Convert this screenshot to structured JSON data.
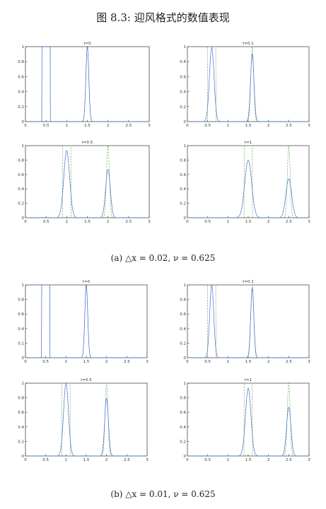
{
  "figure_title": "图 8.3: 迎风格式的数值表现",
  "captions": [
    "(a) △x = 0.02, ν = 0.625",
    "(b) △x = 0.01, ν = 0.625"
  ],
  "colors": {
    "numerical": "#4a6fd1",
    "exact": "#5aa84a",
    "axis": "#333333"
  },
  "chart_data": [
    {
      "type": "line",
      "title": "t=0",
      "xlim": [
        0,
        3
      ],
      "ylim": [
        0,
        1
      ],
      "xticks": [
        "0",
        "0.5",
        "1",
        "1.5",
        "2",
        "2.5",
        "3"
      ],
      "yticks": [
        "0",
        "0.2",
        "0.4",
        "0.6",
        "0.8",
        "1"
      ],
      "series": [
        {
          "style": "dashed",
          "pulse": {
            "start": 0.4,
            "end": 0.6,
            "height": 1
          },
          "gaussian": {
            "center": 1.5,
            "height": 1,
            "width": 0.05
          }
        },
        {
          "style": "solid",
          "pulse": {
            "start": 0.4,
            "end": 0.6,
            "height": 1
          },
          "gaussian": {
            "center": 1.5,
            "height": 1,
            "width": 0.05
          }
        }
      ]
    },
    {
      "type": "line",
      "title": "t=0.1",
      "xlim": [
        0,
        3
      ],
      "ylim": [
        0,
        1
      ],
      "xticks": [
        "0",
        "0.5",
        "1",
        "1.5",
        "2",
        "2.5",
        "3"
      ],
      "yticks": [
        "0",
        "0.2",
        "0.4",
        "0.6",
        "0.8",
        "1"
      ],
      "series": [
        {
          "style": "dashed",
          "pulse": {
            "start": 0.5,
            "end": 0.7,
            "height": 1
          },
          "gaussian": {
            "center": 1.6,
            "height": 1,
            "width": 0.05
          }
        },
        {
          "style": "solid",
          "bump": {
            "center": 0.6,
            "height": 0.99,
            "width": 0.08
          },
          "gaussian": {
            "center": 1.6,
            "height": 0.9,
            "width": 0.06
          }
        }
      ]
    },
    {
      "type": "line",
      "title": "t=0.5",
      "xlim": [
        0,
        3
      ],
      "ylim": [
        0,
        1
      ],
      "xticks": [
        "0",
        "0.5",
        "1",
        "1.5",
        "2",
        "2.5",
        "3"
      ],
      "yticks": [
        "0",
        "0.2",
        "0.4",
        "0.6",
        "0.8",
        "1"
      ],
      "series": [
        {
          "style": "dashed",
          "pulse": {
            "start": 0.9,
            "end": 1.1,
            "height": 1
          },
          "gaussian": {
            "center": 2.0,
            "height": 1,
            "width": 0.05
          }
        },
        {
          "style": "solid",
          "bump": {
            "center": 1.0,
            "height": 0.93,
            "width": 0.1
          },
          "gaussian": {
            "center": 2.0,
            "height": 0.67,
            "width": 0.08
          }
        }
      ]
    },
    {
      "type": "line",
      "title": "t=1",
      "xlim": [
        0,
        3
      ],
      "ylim": [
        0,
        1
      ],
      "xticks": [
        "0",
        "0.5",
        "1",
        "1.5",
        "2",
        "2.5",
        "3"
      ],
      "yticks": [
        "0",
        "0.2",
        "0.4",
        "0.6",
        "0.8",
        "1"
      ],
      "series": [
        {
          "style": "dashed",
          "pulse": {
            "start": 1.4,
            "end": 1.6,
            "height": 1
          },
          "gaussian": {
            "center": 2.5,
            "height": 1,
            "width": 0.05
          }
        },
        {
          "style": "solid",
          "bump": {
            "center": 1.5,
            "height": 0.8,
            "width": 0.12
          },
          "gaussian": {
            "center": 2.5,
            "height": 0.54,
            "width": 0.1
          }
        }
      ]
    },
    {
      "type": "line",
      "title": "t=0",
      "xlim": [
        0,
        3
      ],
      "ylim": [
        0,
        1
      ],
      "xticks": [
        "0",
        "0.5",
        "1",
        "1.5",
        "2",
        "2.5",
        "3"
      ],
      "yticks": [
        "0",
        "0.2",
        "0.4",
        "0.6",
        "0.8",
        "1"
      ],
      "series": [
        {
          "style": "dashed",
          "pulse": {
            "start": 0.4,
            "end": 0.6,
            "height": 1
          },
          "gaussian": {
            "center": 1.5,
            "height": 1,
            "width": 0.05
          }
        },
        {
          "style": "solid",
          "pulse": {
            "start": 0.4,
            "end": 0.6,
            "height": 1
          },
          "gaussian": {
            "center": 1.5,
            "height": 1,
            "width": 0.05
          }
        }
      ]
    },
    {
      "type": "line",
      "title": "t=0.1",
      "xlim": [
        0,
        3
      ],
      "ylim": [
        0,
        1
      ],
      "xticks": [
        "0",
        "0.5",
        "1",
        "1.5",
        "2",
        "2.5",
        "3"
      ],
      "yticks": [
        "0",
        "0.2",
        "0.4",
        "0.6",
        "0.8",
        "1"
      ],
      "series": [
        {
          "style": "dashed",
          "pulse": {
            "start": 0.5,
            "end": 0.7,
            "height": 1
          },
          "gaussian": {
            "center": 1.6,
            "height": 1,
            "width": 0.05
          }
        },
        {
          "style": "solid",
          "bump": {
            "center": 0.6,
            "height": 1.0,
            "width": 0.07
          },
          "gaussian": {
            "center": 1.6,
            "height": 0.95,
            "width": 0.055
          }
        }
      ]
    },
    {
      "type": "line",
      "title": "t=0.5",
      "xlim": [
        0,
        3
      ],
      "ylim": [
        0,
        1
      ],
      "xticks": [
        "0",
        "0.5",
        "1",
        "1.5",
        "2",
        "2.5",
        "3"
      ],
      "yticks": [
        "0",
        "0.2",
        "0.4",
        "0.6",
        "0.8",
        "1"
      ],
      "series": [
        {
          "style": "dashed",
          "pulse": {
            "start": 0.9,
            "end": 1.1,
            "height": 1
          },
          "gaussian": {
            "center": 2.0,
            "height": 1,
            "width": 0.05
          }
        },
        {
          "style": "solid",
          "bump": {
            "center": 1.0,
            "height": 1.0,
            "width": 0.085
          },
          "gaussian": {
            "center": 2.0,
            "height": 0.79,
            "width": 0.065
          }
        }
      ]
    },
    {
      "type": "line",
      "title": "t=1",
      "xlim": [
        0,
        3
      ],
      "ylim": [
        0,
        1
      ],
      "xticks": [
        "0",
        "0.5",
        "1",
        "1.5",
        "2",
        "2.5",
        "3"
      ],
      "yticks": [
        "0",
        "0.2",
        "0.4",
        "0.6",
        "0.8",
        "1"
      ],
      "series": [
        {
          "style": "dashed",
          "pulse": {
            "start": 1.4,
            "end": 1.6,
            "height": 1
          },
          "gaussian": {
            "center": 2.5,
            "height": 1,
            "width": 0.05
          }
        },
        {
          "style": "solid",
          "bump": {
            "center": 1.5,
            "height": 0.93,
            "width": 0.095
          },
          "gaussian": {
            "center": 2.5,
            "height": 0.67,
            "width": 0.075
          }
        }
      ]
    }
  ]
}
